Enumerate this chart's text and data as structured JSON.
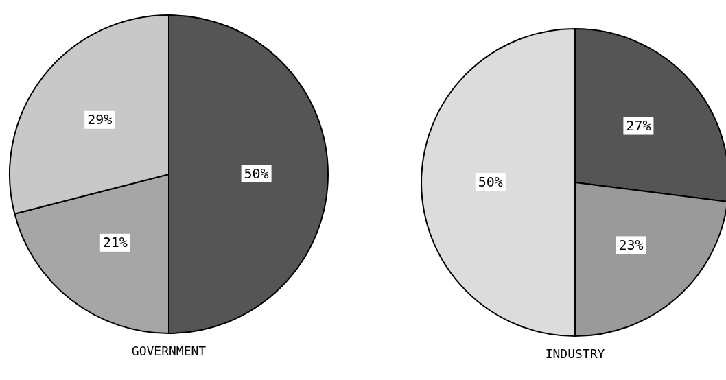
{
  "chart_data": [
    {
      "type": "pie",
      "title": "GOVERNMENT",
      "categories": [
        null,
        null,
        null
      ],
      "values": [
        50,
        21,
        29
      ],
      "value_labels": [
        "50%",
        "21%",
        "29%"
      ],
      "colors": [
        "#555555",
        "#a6a6a6",
        "#c8c8c8"
      ]
    },
    {
      "type": "pie",
      "title": "INDUSTRY",
      "categories": [
        null,
        null,
        null
      ],
      "values": [
        27,
        23,
        50
      ],
      "value_labels": [
        "27%",
        "23%",
        "50%"
      ],
      "colors": [
        "#555555",
        "#9a9a9a",
        "#dcdcdc"
      ]
    }
  ]
}
